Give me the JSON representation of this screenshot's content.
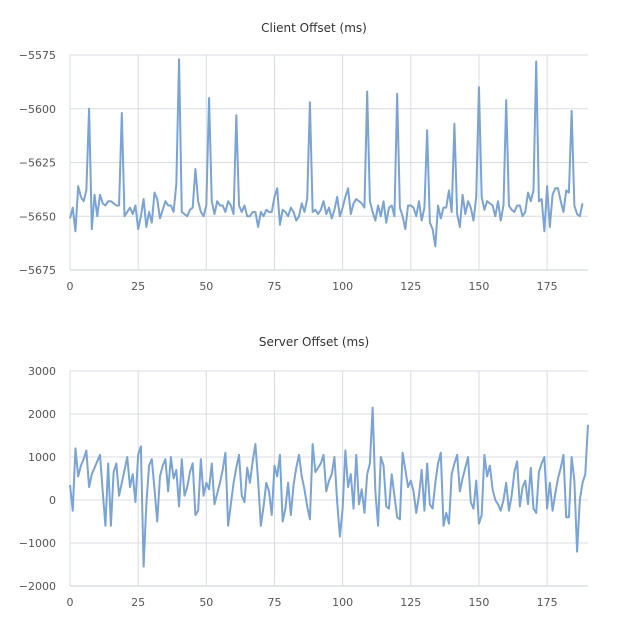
{
  "chart_data": [
    {
      "type": "line",
      "title": "Client Offset (ms)",
      "xlabel": "",
      "ylabel": "",
      "xlim": [
        0,
        190
      ],
      "ylim": [
        -5675,
        -5575
      ],
      "xticks": [
        0,
        25,
        50,
        75,
        100,
        125,
        150,
        175
      ],
      "yticks": [
        -5575,
        -5600,
        -5625,
        -5650,
        -5675
      ],
      "grid": true,
      "color": "#7aa3d6",
      "x_start": 0,
      "values": [
        -5651,
        -5646,
        -5657,
        -5636,
        -5641,
        -5643,
        -5638,
        -5600,
        -5656,
        -5640,
        -5650,
        -5640,
        -5644,
        -5645,
        -5643,
        -5643,
        -5644,
        -5645,
        -5645,
        -5602,
        -5650,
        -5648,
        -5646,
        -5649,
        -5645,
        -5656,
        -5650,
        -5642,
        -5655,
        -5648,
        -5653,
        -5639,
        -5642,
        -5651,
        -5647,
        -5643,
        -5645,
        -5645,
        -5648,
        -5635,
        -5577,
        -5648,
        -5649,
        -5650,
        -5647,
        -5646,
        -5628,
        -5643,
        -5648,
        -5650,
        -5645,
        -5595,
        -5643,
        -5649,
        -5643,
        -5645,
        -5645,
        -5648,
        -5643,
        -5645,
        -5649,
        -5603,
        -5645,
        -5648,
        -5645,
        -5650,
        -5650,
        -5648,
        -5648,
        -5655,
        -5648,
        -5650,
        -5647,
        -5648,
        -5648,
        -5641,
        -5637,
        -5654,
        -5647,
        -5648,
        -5650,
        -5646,
        -5648,
        -5652,
        -5650,
        -5644,
        -5648,
        -5642,
        -5597,
        -5648,
        -5647,
        -5649,
        -5647,
        -5643,
        -5649,
        -5646,
        -5651,
        -5647,
        -5641,
        -5650,
        -5646,
        -5641,
        -5637,
        -5649,
        -5644,
        -5642,
        -5643,
        -5644,
        -5646,
        -5592,
        -5643,
        -5648,
        -5652,
        -5645,
        -5650,
        -5643,
        -5653,
        -5646,
        -5645,
        -5650,
        -5593,
        -5646,
        -5650,
        -5656,
        -5645,
        -5645,
        -5646,
        -5650,
        -5643,
        -5652,
        -5646,
        -5610,
        -5653,
        -5656,
        -5664,
        -5645,
        -5651,
        -5646,
        -5646,
        -5638,
        -5648,
        -5607,
        -5649,
        -5655,
        -5640,
        -5649,
        -5643,
        -5646,
        -5652,
        -5641,
        -5590,
        -5641,
        -5647,
        -5643,
        -5644,
        -5645,
        -5650,
        -5643,
        -5652,
        -5645,
        -5596,
        -5645,
        -5647,
        -5648,
        -5645,
        -5645,
        -5650,
        -5648,
        -5639,
        -5643,
        -5638,
        -5578,
        -5643,
        -5642,
        -5657,
        -5636,
        -5655,
        -5640,
        -5637,
        -5637,
        -5643,
        -5648,
        -5638,
        -5639,
        -5601,
        -5645,
        -5649,
        -5650,
        -5644
      ]
    },
    {
      "type": "line",
      "title": "Server Offset (ms)",
      "xlabel": "",
      "ylabel": "",
      "xlim": [
        0,
        190
      ],
      "ylim": [
        -2000,
        3000
      ],
      "xticks": [
        0,
        25,
        50,
        75,
        100,
        125,
        150,
        175
      ],
      "yticks": [
        3000,
        2000,
        1000,
        0,
        -1000,
        -2000
      ],
      "grid": true,
      "color": "#7aa3d6",
      "x_start": 0,
      "values": [
        350,
        -250,
        1200,
        550,
        800,
        950,
        1150,
        300,
        600,
        750,
        900,
        1050,
        200,
        -600,
        850,
        -600,
        650,
        850,
        100,
        400,
        700,
        1000,
        300,
        600,
        -50,
        1050,
        1250,
        -1550,
        -100,
        800,
        950,
        250,
        -500,
        550,
        800,
        950,
        200,
        1000,
        500,
        700,
        -150,
        950,
        100,
        300,
        650,
        850,
        -350,
        -250,
        950,
        100,
        400,
        250,
        850,
        -100,
        150,
        400,
        700,
        1100,
        -600,
        -100,
        400,
        750,
        1050,
        100,
        -50,
        750,
        400,
        900,
        1300,
        450,
        -600,
        -150,
        400,
        200,
        -350,
        800,
        550,
        1050,
        -500,
        -200,
        400,
        -350,
        350,
        750,
        1050,
        550,
        250,
        -150,
        -450,
        1300,
        650,
        750,
        850,
        1050,
        200,
        450,
        600,
        1000,
        -50,
        -850,
        -200,
        1150,
        300,
        600,
        -200,
        1050,
        -100,
        250,
        -300,
        600,
        850,
        2150,
        200,
        -600,
        1000,
        800,
        -150,
        -200,
        600,
        100,
        -400,
        -450,
        1100,
        700,
        300,
        450,
        200,
        -300,
        100,
        700,
        -250,
        850,
        -100,
        -200,
        400,
        850,
        1100,
        -600,
        -300,
        -550,
        600,
        850,
        1050,
        200,
        500,
        750,
        1000,
        -50,
        -200,
        450,
        -550,
        -350,
        1050,
        550,
        800,
        250,
        0,
        -100,
        -250,
        0,
        400,
        -250,
        100,
        650,
        900,
        -150,
        300,
        450,
        -100,
        750,
        -200,
        -300,
        650,
        850,
        1000,
        -200,
        400,
        -250,
        150,
        500,
        750,
        1050,
        -400,
        -400,
        1000,
        450,
        -1200,
        0,
        400,
        600,
        1750
      ]
    }
  ]
}
